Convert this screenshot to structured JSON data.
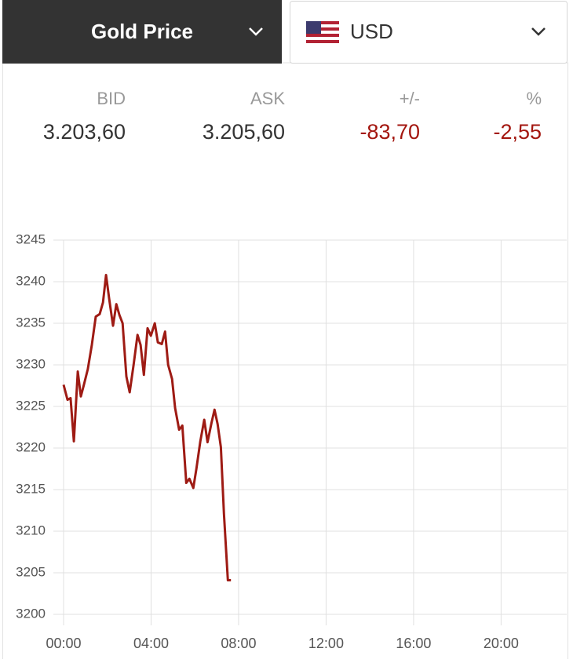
{
  "header": {
    "product": "Gold Price",
    "currency": "USD"
  },
  "quote": [
    {
      "label": "BID",
      "value": "3.203,60",
      "color": "#333333"
    },
    {
      "label": "ASK",
      "value": "3.205,60",
      "color": "#333333"
    },
    {
      "label": "+/-",
      "value": "-83,70",
      "color": "#a3160f"
    },
    {
      "label": "%",
      "value": "-2,55",
      "color": "#a3160f"
    }
  ],
  "chart_data": {
    "type": "line",
    "color": "#9e1b14",
    "grid": true,
    "x": [
      0,
      0.18,
      0.32,
      0.47,
      0.65,
      0.79,
      0.93,
      1.11,
      1.29,
      1.47,
      1.65,
      1.8,
      1.94,
      2.08,
      2.26,
      2.41,
      2.55,
      2.7,
      2.87,
      3.02,
      3.2,
      3.38,
      3.52,
      3.67,
      3.84,
      3.99,
      4.17,
      4.31,
      4.49,
      4.64,
      4.78,
      4.96,
      5.1,
      5.28,
      5.43,
      5.61,
      5.75,
      5.93,
      6.07,
      6.25,
      6.43,
      6.58,
      6.76,
      6.9,
      7.04,
      7.19,
      7.33,
      7.51,
      7.65
    ],
    "values": [
      3227.6,
      3225.8,
      3226,
      3220.8,
      3229.2,
      3226.2,
      3227.6,
      3229.5,
      3232.4,
      3235.8,
      3236.1,
      3237.5,
      3240.8,
      3238,
      3234.7,
      3237.3,
      3236,
      3235,
      3228.6,
      3226.7,
      3230,
      3233.6,
      3232.4,
      3228.8,
      3234.4,
      3233.5,
      3235,
      3232.7,
      3232.5,
      3234,
      3230,
      3228.3,
      3224.8,
      3222.2,
      3222.7,
      3215.8,
      3216.3,
      3215.2,
      3217.5,
      3220.8,
      3223.4,
      3220.7,
      3223,
      3224.6,
      3222.9,
      3220.1,
      3212.1,
      3204.1,
      3204.1
    ],
    "xlim": [
      0,
      23
    ],
    "xticks": [
      {
        "value": 0,
        "label": "00:00"
      },
      {
        "value": 4,
        "label": "04:00"
      },
      {
        "value": 8,
        "label": "08:00"
      },
      {
        "value": 12,
        "label": "12:00"
      },
      {
        "value": 16,
        "label": "16:00"
      },
      {
        "value": 20,
        "label": "20:00"
      }
    ],
    "ylim": [
      3200,
      3245
    ],
    "yticks": [
      3200,
      3205,
      3210,
      3215,
      3220,
      3225,
      3230,
      3235,
      3240,
      3245
    ]
  }
}
